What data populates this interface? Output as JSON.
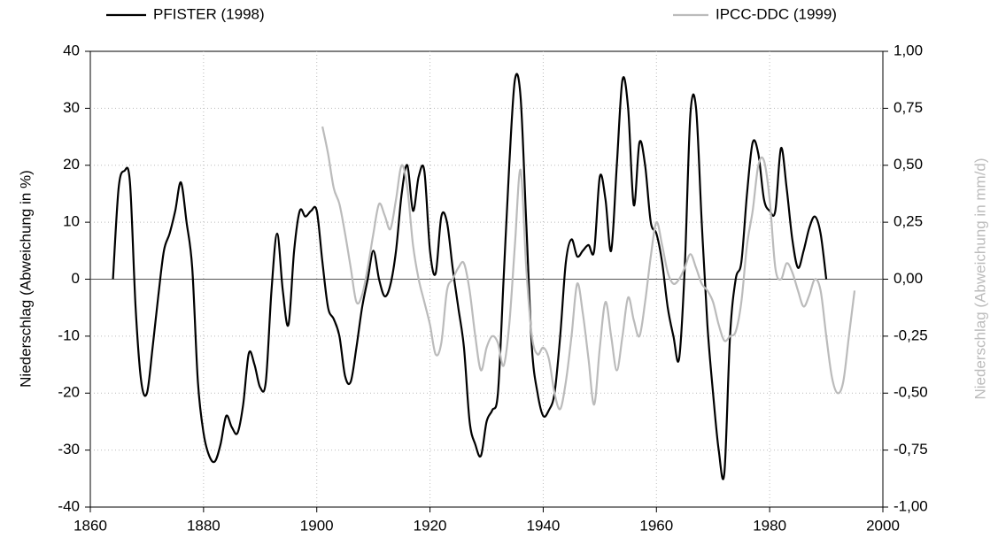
{
  "chart_data": {
    "type": "line",
    "y_label": "Niederschlag (Abweichung in %)",
    "y2_label": "Niederschlag (Abweichung in mm/d)",
    "xlim": [
      1860,
      2000
    ],
    "xticks": [
      1860,
      1880,
      1900,
      1920,
      1940,
      1960,
      1980,
      2000
    ],
    "ylim": [
      -40,
      40
    ],
    "yticks": [
      -40,
      -30,
      -20,
      -10,
      0,
      10,
      20,
      30,
      40
    ],
    "y2lim": [
      -1,
      1
    ],
    "y2ticks": [
      {
        "value": -1,
        "label": "-1,00"
      },
      {
        "value": -0.75,
        "label": "-0,75"
      },
      {
        "value": -0.5,
        "label": "-0,50"
      },
      {
        "value": -0.25,
        "label": "-0,25"
      },
      {
        "value": 0,
        "label": "0,00"
      },
      {
        "value": 0.25,
        "label": "0,25"
      },
      {
        "value": 0.5,
        "label": "0,50"
      },
      {
        "value": 0.75,
        "label": "0,75"
      },
      {
        "value": 1,
        "label": "1,00"
      }
    ],
    "grid": true,
    "series": [
      {
        "name": "PFISTER (1998)",
        "color": "#000000",
        "x": [
          1864,
          1865,
          1866,
          1867,
          1868,
          1869,
          1870,
          1871,
          1872,
          1873,
          1874,
          1875,
          1876,
          1877,
          1878,
          1879,
          1880,
          1881,
          1882,
          1883,
          1884,
          1885,
          1886,
          1887,
          1888,
          1889,
          1890,
          1891,
          1892,
          1893,
          1894,
          1895,
          1896,
          1897,
          1898,
          1899,
          1900,
          1901,
          1902,
          1903,
          1904,
          1905,
          1906,
          1907,
          1908,
          1909,
          1910,
          1911,
          1912,
          1913,
          1914,
          1915,
          1916,
          1917,
          1918,
          1919,
          1920,
          1921,
          1922,
          1923,
          1924,
          1925,
          1926,
          1927,
          1928,
          1929,
          1930,
          1931,
          1932,
          1933,
          1934,
          1935,
          1936,
          1937,
          1938,
          1939,
          1940,
          1941,
          1942,
          1943,
          1944,
          1945,
          1946,
          1947,
          1948,
          1949,
          1950,
          1951,
          1952,
          1953,
          1954,
          1955,
          1956,
          1957,
          1958,
          1959,
          1960,
          1961,
          1962,
          1963,
          1964,
          1965,
          1966,
          1967,
          1968,
          1969,
          1970,
          1971,
          1972,
          1973,
          1974,
          1975,
          1976,
          1977,
          1978,
          1979,
          1980,
          1981,
          1982,
          1983,
          1984,
          1985,
          1986,
          1987,
          1988,
          1989,
          1990
        ],
        "values": [
          0,
          16,
          19,
          17,
          -5,
          -18,
          -20,
          -12,
          -3,
          5,
          8,
          12,
          17,
          10,
          2,
          -18,
          -27,
          -31,
          -32,
          -29,
          -24,
          -26,
          -27,
          -22,
          -13,
          -15,
          -19,
          -18,
          -2,
          8,
          -2,
          -8,
          5,
          12,
          11,
          12,
          12,
          3,
          -5,
          -7,
          -10,
          -17,
          -18,
          -12,
          -5,
          0,
          5,
          0,
          -3,
          -1,
          5,
          15,
          20,
          12,
          18,
          19,
          5,
          1,
          11,
          10,
          2,
          -5,
          -12,
          -25,
          -29,
          -31,
          -25,
          -23,
          -20,
          0,
          20,
          35,
          32,
          10,
          -12,
          -20,
          -24,
          -23,
          -20,
          -10,
          3,
          7,
          4,
          5,
          6,
          5,
          18,
          14,
          5,
          20,
          35,
          30,
          13,
          24,
          20,
          10,
          8,
          3,
          -5,
          -10,
          -14,
          2,
          29,
          30,
          10,
          -8,
          -20,
          -30,
          -34,
          -10,
          0,
          3,
          15,
          24,
          22,
          14,
          12,
          12,
          23,
          16,
          7,
          2,
          5,
          9,
          11,
          8,
          0
        ]
      },
      {
        "name": "IPCC-DDC (1999)",
        "color": "#bbbbbb",
        "axis": "y2",
        "x": [
          1901,
          1902,
          1903,
          1904,
          1905,
          1906,
          1907,
          1908,
          1909,
          1910,
          1911,
          1912,
          1913,
          1914,
          1915,
          1916,
          1917,
          1918,
          1919,
          1920,
          1921,
          1922,
          1923,
          1924,
          1925,
          1926,
          1927,
          1928,
          1929,
          1930,
          1931,
          1932,
          1933,
          1934,
          1935,
          1936,
          1937,
          1938,
          1939,
          1940,
          1941,
          1942,
          1943,
          1944,
          1945,
          1946,
          1947,
          1948,
          1949,
          1950,
          1951,
          1952,
          1953,
          1954,
          1955,
          1956,
          1957,
          1958,
          1959,
          1960,
          1961,
          1962,
          1963,
          1964,
          1965,
          1966,
          1967,
          1968,
          1969,
          1970,
          1971,
          1972,
          1973,
          1974,
          1975,
          1976,
          1977,
          1978,
          1979,
          1980,
          1981,
          1982,
          1983,
          1984,
          1985,
          1986,
          1987,
          1988,
          1989,
          1990,
          1991,
          1992,
          1993,
          1994,
          1995
        ],
        "values": [
          0.67,
          0.55,
          0.4,
          0.33,
          0.2,
          0.05,
          -0.1,
          -0.07,
          0.05,
          0.2,
          0.33,
          0.28,
          0.22,
          0.35,
          0.5,
          0.4,
          0.15,
          0,
          -0.1,
          -0.2,
          -0.33,
          -0.28,
          -0.05,
          0,
          0.05,
          0.07,
          -0.05,
          -0.25,
          -0.4,
          -0.3,
          -0.25,
          -0.28,
          -0.38,
          -0.2,
          0.15,
          0.48,
          0.05,
          -0.25,
          -0.33,
          -0.3,
          -0.35,
          -0.5,
          -0.57,
          -0.45,
          -0.25,
          -0.02,
          -0.15,
          -0.35,
          -0.55,
          -0.3,
          -0.1,
          -0.25,
          -0.4,
          -0.25,
          -0.08,
          -0.18,
          -0.25,
          -0.1,
          0.1,
          0.25,
          0.15,
          0.03,
          -0.02,
          0,
          0.05,
          0.11,
          0.05,
          -0.02,
          -0.05,
          -0.1,
          -0.2,
          -0.27,
          -0.25,
          -0.23,
          -0.1,
          0.15,
          0.3,
          0.5,
          0.52,
          0.35,
          0.05,
          0,
          0.07,
          0.03,
          -0.05,
          -0.12,
          -0.07,
          0,
          -0.05,
          -0.25,
          -0.43,
          -0.5,
          -0.45,
          -0.25,
          -0.05
        ]
      }
    ]
  }
}
